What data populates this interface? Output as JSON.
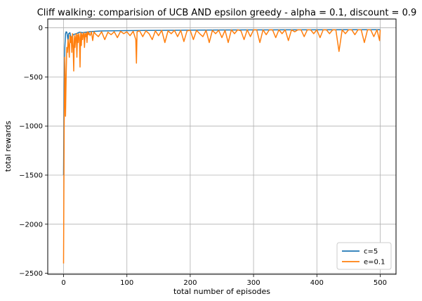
{
  "chart_data": {
    "type": "line",
    "title": "Cliff walking: comparision of UCB AND epsilon greedy - alpha = 0.1, discount = 0.9",
    "xlabel": "total number of episodes",
    "ylabel": "total rewards",
    "xlim": [
      -25,
      525
    ],
    "ylim": [
      -2510,
      90
    ],
    "xticks": [
      0,
      100,
      200,
      300,
      400,
      500
    ],
    "yticks": [
      0,
      -500,
      -1000,
      -1500,
      -2000,
      -2500
    ],
    "grid": true,
    "legend_position": "lower-right",
    "series": [
      {
        "name": "c=5",
        "color": "#1f77b4",
        "x": [
          0,
          1,
          2,
          3,
          4,
          5,
          6,
          7,
          8,
          10,
          12,
          15,
          20,
          25,
          30,
          40,
          50,
          60,
          80,
          100,
          130,
          160,
          200,
          250,
          300,
          350,
          400,
          450,
          500
        ],
        "y": [
          -1500,
          -600,
          -200,
          -60,
          -40,
          -45,
          -80,
          -130,
          -60,
          -50,
          -110,
          -70,
          -60,
          -45,
          -50,
          -40,
          -35,
          -32,
          -30,
          -28,
          -26,
          -25,
          -24,
          -22,
          -21,
          -20,
          -20,
          -19,
          -19
        ]
      },
      {
        "name": "e=0.1",
        "color": "#ff7f0e",
        "x": [
          0,
          1,
          2,
          3,
          4,
          5,
          6,
          7,
          8,
          9,
          10,
          11,
          12,
          13,
          14,
          15,
          16,
          17,
          18,
          19,
          20,
          21,
          22,
          23,
          24,
          25,
          26,
          27,
          28,
          29,
          30,
          31,
          32,
          33,
          34,
          35,
          36,
          37,
          38,
          39,
          40,
          42,
          44,
          46,
          48,
          50,
          55,
          60,
          65,
          70,
          75,
          80,
          85,
          90,
          95,
          100,
          105,
          110,
          114,
          115,
          116,
          120,
          125,
          130,
          135,
          140,
          145,
          150,
          155,
          160,
          165,
          170,
          175,
          180,
          185,
          190,
          195,
          200,
          205,
          210,
          215,
          220,
          225,
          230,
          235,
          240,
          245,
          250,
          255,
          260,
          265,
          270,
          275,
          280,
          285,
          290,
          295,
          300,
          305,
          310,
          315,
          320,
          325,
          330,
          335,
          340,
          345,
          350,
          355,
          360,
          365,
          370,
          375,
          380,
          385,
          390,
          395,
          400,
          405,
          410,
          415,
          420,
          425,
          430,
          435,
          440,
          445,
          450,
          455,
          460,
          465,
          470,
          475,
          480,
          485,
          490,
          495,
          499,
          500
        ],
        "y": [
          -2400,
          -1000,
          -300,
          -900,
          -500,
          -200,
          -250,
          -120,
          -180,
          -300,
          -80,
          -150,
          -90,
          -250,
          -60,
          -180,
          -440,
          -80,
          -200,
          -100,
          -60,
          -300,
          -70,
          -150,
          -60,
          -100,
          -400,
          -50,
          -180,
          -60,
          -120,
          -70,
          -50,
          -200,
          -60,
          -90,
          -50,
          -150,
          -40,
          -70,
          -50,
          -80,
          -40,
          -130,
          -40,
          -60,
          -90,
          -40,
          -120,
          -45,
          -70,
          -40,
          -100,
          -35,
          -60,
          -40,
          -80,
          -35,
          -120,
          -360,
          -40,
          -30,
          -90,
          -30,
          -60,
          -120,
          -30,
          -80,
          -25,
          -150,
          -30,
          -60,
          -25,
          -90,
          -25,
          -140,
          -30,
          -25,
          -120,
          -25,
          -60,
          -90,
          -25,
          -150,
          -25,
          -60,
          -25,
          -100,
          -25,
          -150,
          -20,
          -60,
          -20,
          -30,
          -120,
          -20,
          -90,
          -20,
          -20,
          -150,
          -20,
          -70,
          -20,
          -20,
          -100,
          -20,
          -60,
          -20,
          -130,
          -20,
          -40,
          -20,
          -20,
          -90,
          -20,
          -20,
          -60,
          -20,
          -100,
          -20,
          -20,
          -60,
          -20,
          -20,
          -240,
          -20,
          -60,
          -20,
          -20,
          -70,
          -20,
          -20,
          -150,
          -20,
          -20,
          -90,
          -20,
          -130,
          -20
        ]
      }
    ]
  }
}
